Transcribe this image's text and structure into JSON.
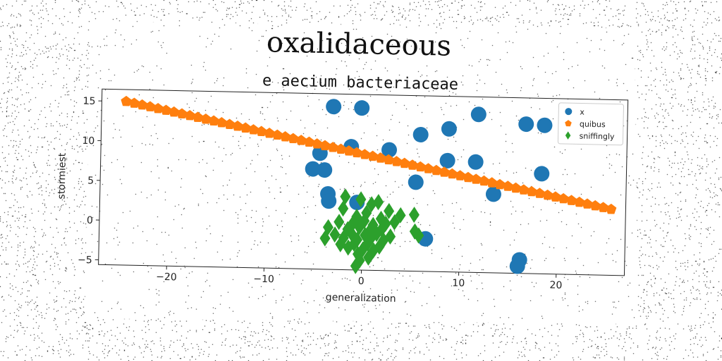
{
  "chart_data": {
    "type": "scatter",
    "title": "oxalidaceous",
    "subtitle": "e aecium bacteriaceae",
    "xlabel": "generalization",
    "ylabel": "stormiest",
    "xlim": [
      -27,
      27
    ],
    "ylim": [
      -5.6,
      16.5
    ],
    "xticks": [
      -20,
      -10,
      0,
      10,
      20
    ],
    "yticks": [
      -5,
      0,
      5,
      10,
      15
    ],
    "legend_position": "top-right",
    "grid": false,
    "series": [
      {
        "name": "x",
        "marker": "circle",
        "color": "#1f77b4",
        "points": [
          [
            -3.2,
            14.9
          ],
          [
            -0.3,
            14.8
          ],
          [
            11.7,
            14.3
          ],
          [
            16.6,
            13.2
          ],
          [
            18.5,
            13.1
          ],
          [
            5.8,
            11.6
          ],
          [
            8.7,
            12.4
          ],
          [
            -4.5,
            9.0
          ],
          [
            -1.3,
            9.9
          ],
          [
            2.6,
            9.6
          ],
          [
            8.6,
            8.4
          ],
          [
            11.5,
            8.3
          ],
          [
            -5.2,
            7.0
          ],
          [
            -4.0,
            6.9
          ],
          [
            18.3,
            7.0
          ],
          [
            5.4,
            5.6
          ],
          [
            13.4,
            4.3
          ],
          [
            -3.6,
            3.9
          ],
          [
            -3.5,
            3.0
          ],
          [
            -0.6,
            2.9
          ],
          [
            6.5,
            -1.5
          ],
          [
            16.2,
            -3.9
          ],
          [
            16.0,
            -4.7
          ]
        ]
      },
      {
        "name": "quibus",
        "marker": "pentagon",
        "color": "#ff7f0e",
        "line": {
          "x_start": -24.5,
          "x_end": 25.5,
          "y_start": 15.0,
          "y_end": 2.7,
          "count": 62
        }
      },
      {
        "name": "sniffingly",
        "marker": "diamond",
        "color": "#2ca02c",
        "points": [
          [
            -1.8,
            3.6
          ],
          [
            -0.2,
            3.3
          ],
          [
            0.9,
            2.7
          ],
          [
            1.6,
            3.0
          ],
          [
            -2.0,
            2.1
          ],
          [
            2.7,
            1.9
          ],
          [
            3.9,
            1.4
          ],
          [
            5.3,
            1.5
          ],
          [
            -0.6,
            1.1
          ],
          [
            0.4,
            1.6
          ],
          [
            1.9,
            0.9
          ],
          [
            -2.4,
            0.4
          ],
          [
            -1.0,
            0.2
          ],
          [
            0.2,
            0.6
          ],
          [
            1.1,
            0.1
          ],
          [
            2.4,
            0.3
          ],
          [
            3.3,
            0.5
          ],
          [
            -3.5,
            -0.3
          ],
          [
            -1.5,
            -0.5
          ],
          [
            -0.3,
            -0.2
          ],
          [
            0.8,
            -0.6
          ],
          [
            2.0,
            -0.4
          ],
          [
            5.4,
            -0.6
          ],
          [
            -2.8,
            -1.2
          ],
          [
            -1.1,
            -1.0
          ],
          [
            0.3,
            -1.2
          ],
          [
            1.5,
            -1.0
          ],
          [
            2.9,
            -1.3
          ],
          [
            5.8,
            -1.1
          ],
          [
            -3.8,
            -1.7
          ],
          [
            -1.9,
            -1.6
          ],
          [
            -0.5,
            -1.8
          ],
          [
            0.9,
            -1.6
          ],
          [
            2.2,
            -1.8
          ],
          [
            -2.2,
            -2.4
          ],
          [
            -0.8,
            -2.3
          ],
          [
            0.6,
            -2.2
          ],
          [
            1.8,
            -2.6
          ],
          [
            -1.4,
            -2.8
          ],
          [
            0.1,
            -3.0
          ],
          [
            1.2,
            -3.1
          ],
          [
            -0.4,
            -3.6
          ],
          [
            0.7,
            -4.0
          ],
          [
            -0.2,
            -4.4
          ],
          [
            -0.6,
            -5.1
          ]
        ]
      }
    ]
  }
}
